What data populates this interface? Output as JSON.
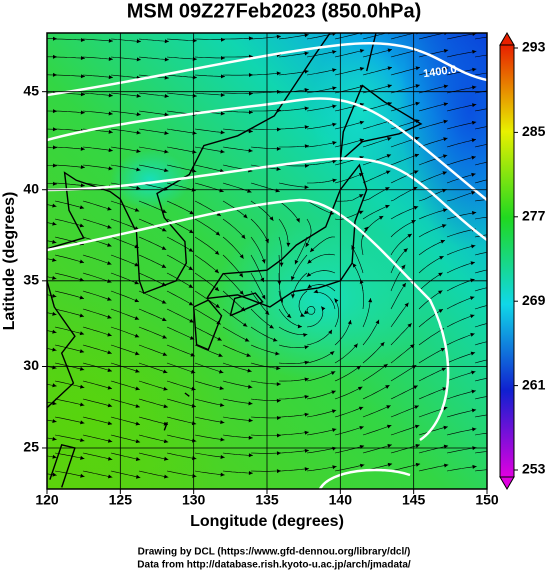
{
  "chart_data": {
    "type": "map",
    "title": "MSM 09Z27Feb2023 (850.0hPa)",
    "x_label": "Longitude (degrees)",
    "y_label": "Latitude  (degrees)",
    "xlim": [
      120,
      150
    ],
    "ylim": [
      22.4,
      47.8
    ],
    "xticks": [
      120,
      125,
      130,
      135,
      140,
      145,
      150
    ],
    "yticks": [
      25,
      30,
      35,
      40,
      45
    ],
    "colorbar": {
      "lim": [
        253,
        293
      ],
      "ticks": [
        253,
        261,
        269,
        277,
        285,
        293
      ]
    },
    "contour_labels": [
      "1400.0"
    ],
    "footer": [
      "Drawing by DCL (https://www.gfd-dennou.org/library/dcl/)",
      "Data from http://database.rish.kyoto-u.ac.jp/arch/jmadata/"
    ]
  }
}
